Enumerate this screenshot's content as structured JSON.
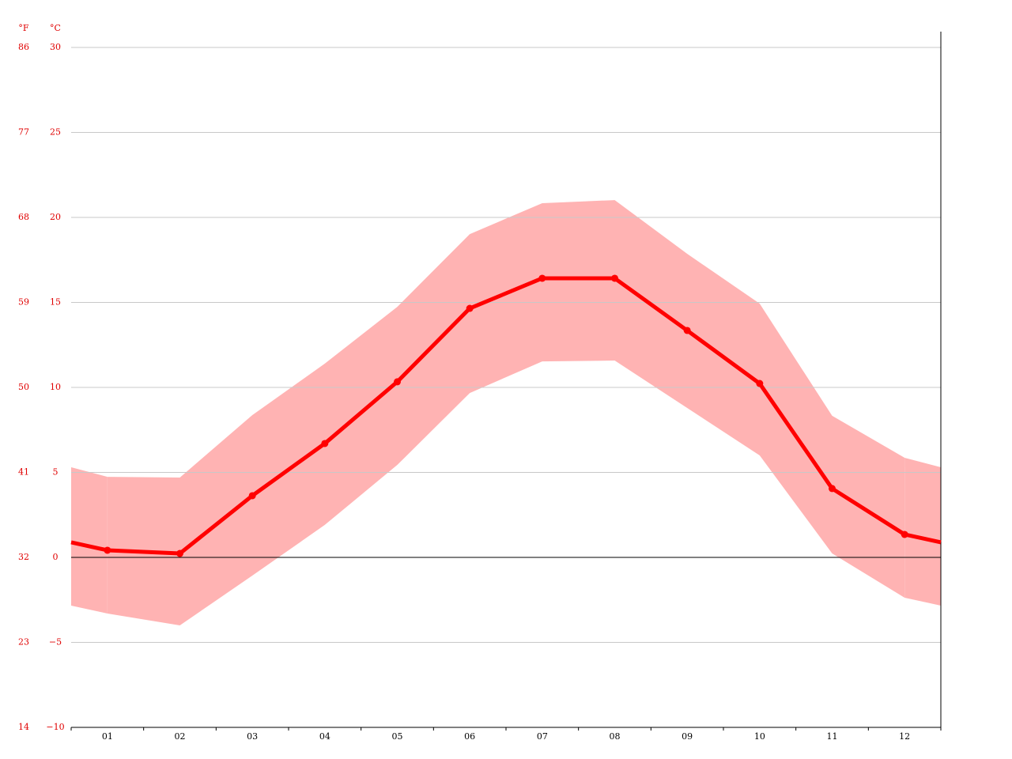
{
  "chart_data": {
    "type": "line",
    "ylabel": "°C",
    "y2label": "°F",
    "categories": [
      "01",
      "02",
      "03",
      "04",
      "05",
      "06",
      "07",
      "08",
      "09",
      "10",
      "11",
      "12"
    ],
    "series": [
      {
        "color": "#ff0000",
        "values": [
          0.42,
          0.23,
          3.63,
          6.7,
          10.33,
          14.65,
          16.42,
          16.42,
          13.35,
          10.23,
          4.05,
          1.35
        ]
      }
    ],
    "band": {
      "color": "#ffb3b3",
      "high": [
        4.74,
        4.7,
        8.37,
        11.4,
        14.74,
        19.02,
        20.84,
        21.02,
        17.86,
        14.93,
        8.33,
        5.86
      ],
      "low": [
        -3.3,
        -4.0,
        -1.07,
        1.91,
        5.44,
        9.67,
        11.53,
        11.58,
        8.79,
        6.0,
        0.23,
        -2.37
      ]
    },
    "ylim": [
      -10,
      30
    ],
    "yticks": [
      {
        "value": -10,
        "label": "−10"
      },
      {
        "value": -5,
        "label": "−5"
      },
      0,
      5,
      10,
      15,
      20,
      25,
      30
    ],
    "y2lim": [
      14,
      86
    ],
    "y2ticks": [
      14,
      23,
      32,
      41,
      50,
      59,
      68,
      77,
      86
    ],
    "grid": true
  }
}
